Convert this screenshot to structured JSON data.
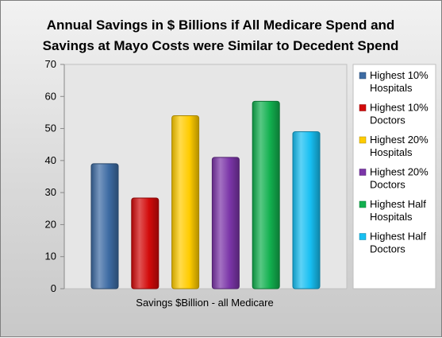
{
  "chart_data": {
    "type": "bar",
    "title": [
      "Annual Savings in $ Billions if All Medicare Spend and",
      "Savings at Mayo Costs were Similar to Decedent Spend"
    ],
    "categories": [
      "Savings $Billion - all Medicare"
    ],
    "series": [
      {
        "name": "Highest 10% Hospitals",
        "legend_lines": [
          "Highest 10%",
          "Hospitals"
        ],
        "values": [
          39
        ],
        "color": "#3d6ba3"
      },
      {
        "name": "Highest 10% Doctors",
        "legend_lines": [
          "Highest 10%",
          "Doctors"
        ],
        "values": [
          28.3
        ],
        "color": "#d20a0a"
      },
      {
        "name": "Highest 20% Hospitals",
        "legend_lines": [
          "Highest 20%",
          "Hospitals"
        ],
        "values": [
          54
        ],
        "color": "#ffcc00"
      },
      {
        "name": "Highest 20% Doctors",
        "legend_lines": [
          "Highest 20%",
          "Doctors"
        ],
        "values": [
          41
        ],
        "color": "#7b35a8"
      },
      {
        "name": "Highest Half Hospitals",
        "legend_lines": [
          "Highest Half",
          "Hospitals"
        ],
        "values": [
          58.5
        ],
        "color": "#12b04f"
      },
      {
        "name": "Highest Half Doctors",
        "legend_lines": [
          "Highest Half",
          "Doctors"
        ],
        "values": [
          49
        ],
        "color": "#17bff2"
      }
    ],
    "ylim": [
      0,
      70
    ],
    "yticks": [
      "0",
      "10",
      "20",
      "30",
      "40",
      "50",
      "60",
      "70"
    ],
    "grid": false,
    "legend_position": "right"
  }
}
